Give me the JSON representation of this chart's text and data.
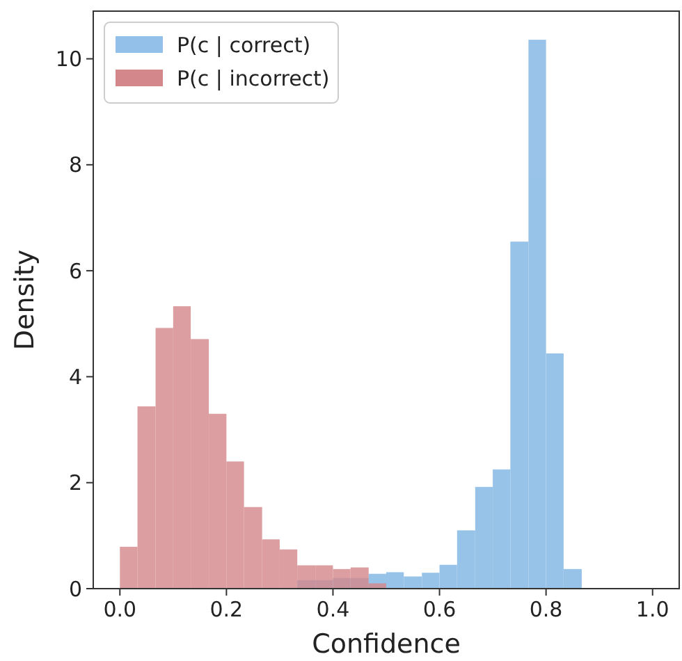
{
  "chart_data": {
    "type": "histogram",
    "xlabel": "Confidence",
    "ylabel": "Density",
    "bins": [
      0,
      0.033,
      0.067,
      0.1,
      0.133,
      0.167,
      0.2,
      0.233,
      0.267,
      0.3,
      0.333,
      0.367,
      0.4,
      0.433,
      0.467,
      0.5,
      0.533,
      0.567,
      0.6,
      0.633,
      0.667,
      0.7,
      0.733,
      0.767,
      0.8,
      0.833,
      0.867
    ],
    "series": [
      {
        "name": "P(c | correct)",
        "color": "#93c0e8",
        "values": [
          0,
          0,
          0,
          0,
          0,
          null,
          null,
          null,
          null,
          null,
          0.16,
          0.16,
          0.2,
          0.2,
          0.28,
          0.31,
          0.23,
          0.3,
          0.45,
          1.1,
          1.92,
          2.25,
          6.55,
          10.36,
          4.44,
          0.37
        ]
      },
      {
        "name": "P(c | incorrect)",
        "color": "#d4878a",
        "values": [
          0.79,
          3.44,
          4.92,
          5.33,
          4.71,
          3.3,
          2.4,
          1.54,
          0.93,
          0.74,
          0.44,
          0.44,
          0.37,
          0.4,
          0.1,
          0,
          0,
          0,
          0,
          0,
          0,
          0,
          0,
          0,
          0,
          0
        ]
      }
    ],
    "xlim": [
      -0.05,
      1.05
    ],
    "ylim": [
      0,
      10.9
    ],
    "xticks": [
      {
        "value": 0,
        "label": "0.0"
      },
      {
        "value": 0.2,
        "label": "0.2"
      },
      {
        "value": 0.4,
        "label": "0.4"
      },
      {
        "value": 0.6,
        "label": "0.6"
      },
      {
        "value": 0.8,
        "label": "0.8"
      },
      {
        "value": 1,
        "label": "1.0"
      }
    ],
    "yticks": [
      0,
      2,
      4,
      6,
      8,
      10
    ],
    "legend": "top left"
  }
}
